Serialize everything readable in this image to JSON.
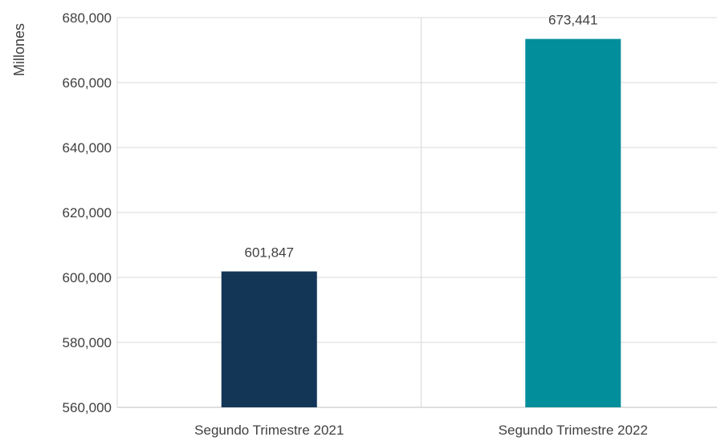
{
  "chart_data": {
    "type": "bar",
    "ylabel": "Millones",
    "xlabel": "",
    "categories": [
      "Segundo Trimestre 2021",
      "Segundo Trimestre 2022"
    ],
    "values": [
      601847,
      673441
    ],
    "data_labels": [
      "601,847",
      "673,441"
    ],
    "bar_colors": [
      "#133657",
      "#028e9b"
    ],
    "ylim": [
      560000,
      680000
    ],
    "yticks": [
      560000,
      580000,
      600000,
      620000,
      640000,
      660000,
      680000
    ],
    "ytick_labels": [
      "560,000",
      "580,000",
      "600,000",
      "620,000",
      "640,000",
      "660,000",
      "680,000"
    ],
    "grid": true,
    "legend": "none"
  }
}
